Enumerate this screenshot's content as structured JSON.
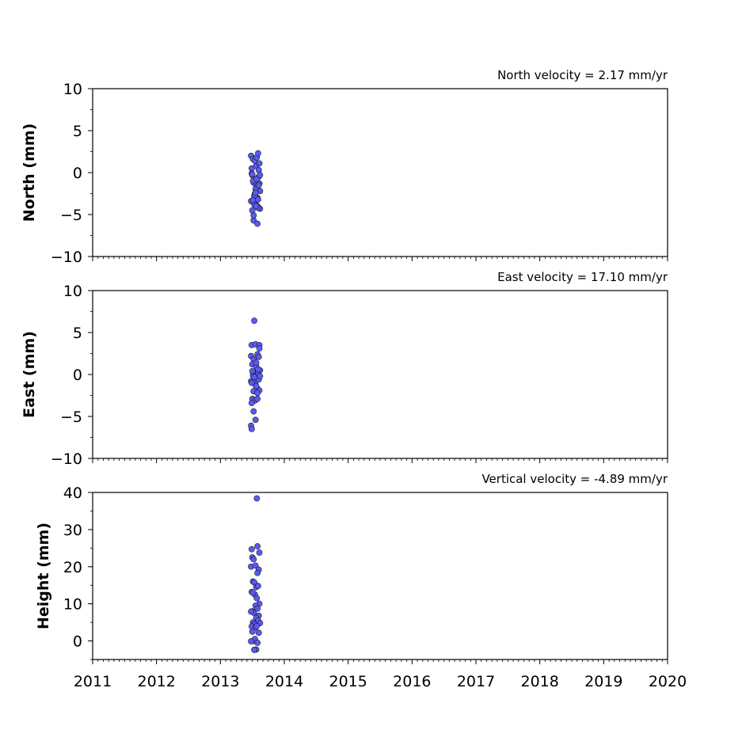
{
  "chart_data": [
    {
      "type": "scatter",
      "title": "North velocity = 2.17 mm/yr",
      "xlabel": "",
      "ylabel": "North (mm)",
      "xlim": [
        2011,
        2020
      ],
      "ylim": [
        -10,
        10
      ],
      "x_ticks": [
        2011,
        2012,
        2013,
        2014,
        2015,
        2016,
        2017,
        2018,
        2019,
        2020
      ],
      "y_ticks": [
        -10,
        -5,
        0,
        5,
        10
      ],
      "tick_labels_x": [],
      "tick_labels_y": [
        "−10",
        "−5",
        "0",
        "5",
        "10"
      ],
      "marker_color": "#5a5af5",
      "edge_color": "#1a1a1a",
      "grid": false,
      "series": [
        {
          "x": [
            2013.48,
            2013.49,
            2013.5,
            2013.51,
            2013.52,
            2013.53,
            2013.54,
            2013.55,
            2013.56,
            2013.57,
            2013.58,
            2013.59,
            2013.6,
            2013.61,
            2013.62,
            2013.48,
            2013.5,
            2013.52,
            2013.54,
            2013.56,
            2013.58,
            2013.6,
            2013.62,
            2013.49,
            2013.51,
            2013.53,
            2013.55,
            2013.57,
            2013.59,
            2013.61,
            2013.5,
            2013.52,
            2013.54,
            2013.56,
            2013.58,
            2013.6,
            2013.62,
            2013.51,
            2013.55,
            2013.59
          ],
          "y": [
            2.0,
            0.5,
            -0.3,
            1.6,
            -1.2,
            -2.8,
            1.4,
            -3.5,
            0.8,
            1.8,
            -4.0,
            2.3,
            -0.5,
            1.1,
            -4.3,
            -3.4,
            -4.5,
            -5.7,
            -2.5,
            -1.8,
            -3.0,
            0.3,
            -2.2,
            -0.1,
            -1.0,
            -3.8,
            -2.0,
            -0.8,
            -4.2,
            -1.3,
            -0.2,
            -5.1,
            -2.7,
            -4.0,
            -6.1,
            -1.5,
            -0.3,
            -3.3,
            -2.4,
            -3.2
          ]
        }
      ]
    },
    {
      "type": "scatter",
      "title": "East velocity = 17.10 mm/yr",
      "xlabel": "",
      "ylabel": "East (mm)",
      "xlim": [
        2011,
        2020
      ],
      "ylim": [
        -10,
        10
      ],
      "x_ticks": [
        2011,
        2012,
        2013,
        2014,
        2015,
        2016,
        2017,
        2018,
        2019,
        2020
      ],
      "y_ticks": [
        -10,
        -5,
        0,
        5,
        10
      ],
      "tick_labels_x": [],
      "tick_labels_y": [
        "−10",
        "−5",
        "0",
        "5",
        "10"
      ],
      "marker_color": "#5a5af5",
      "edge_color": "#1a1a1a",
      "grid": false,
      "series": [
        {
          "x": [
            2013.53,
            2013.49,
            2013.55,
            2013.61,
            2013.48,
            2013.52,
            2013.58,
            2013.6,
            2013.5,
            2013.56,
            2013.62,
            2013.54,
            2013.57,
            2013.51,
            2013.59,
            2013.48,
            2013.53,
            2013.55,
            2013.6,
            2013.49,
            2013.57,
            2013.61,
            2013.52,
            2013.56,
            2013.58,
            2013.5,
            2013.54,
            2013.62,
            2013.51,
            2013.59,
            2013.49,
            2013.52,
            2013.55,
            2013.58,
            2013.61,
            2013.48,
            2013.53,
            2013.5,
            2013.56,
            2013.49
          ],
          "y": [
            6.4,
            3.5,
            3.6,
            3.5,
            2.2,
            1.8,
            2.4,
            2.1,
            1.2,
            1.0,
            0.5,
            0.3,
            0.0,
            0.2,
            -0.4,
            -0.8,
            -0.5,
            -1.2,
            -0.6,
            -1.0,
            -1.6,
            -1.9,
            -2.0,
            -1.4,
            -2.2,
            -2.9,
            -3.1,
            -0.2,
            -0.1,
            0.6,
            -3.4,
            -4.4,
            -5.4,
            -2.9,
            3.1,
            -6.1,
            -0.3,
            0.4,
            1.4,
            -6.5
          ]
        }
      ]
    },
    {
      "type": "scatter",
      "title": "Vertical velocity = -4.89 mm/yr",
      "xlabel": "",
      "ylabel": "Height (mm)",
      "xlim": [
        2011,
        2020
      ],
      "ylim": [
        -5,
        40
      ],
      "x_ticks": [
        2011,
        2012,
        2013,
        2014,
        2015,
        2016,
        2017,
        2018,
        2019,
        2020
      ],
      "y_ticks": [
        0,
        10,
        20,
        30,
        40
      ],
      "tick_labels_x": [
        "2011",
        "2012",
        "2013",
        "2014",
        "2015",
        "2016",
        "2017",
        "2018",
        "2019",
        "2020"
      ],
      "tick_labels_y": [
        "0",
        "10",
        "20",
        "30",
        "40"
      ],
      "marker_color": "#5a5af5",
      "edge_color": "#1a1a1a",
      "grid": false,
      "series": [
        {
          "x": [
            2013.57,
            2013.49,
            2013.58,
            2013.61,
            2013.5,
            2013.52,
            2013.48,
            2013.55,
            2013.6,
            2013.58,
            2013.51,
            2013.53,
            2013.56,
            2013.59,
            2013.49,
            2013.54,
            2013.57,
            2013.61,
            2013.5,
            2013.55,
            2013.58,
            2013.52,
            2013.6,
            2013.48,
            2013.56,
            2013.59,
            2013.51,
            2013.53,
            2013.62,
            2013.49,
            2013.55,
            2013.57,
            2013.5,
            2013.6,
            2013.52,
            2013.54,
            2013.58,
            2013.48,
            2013.56,
            2013.53,
            2013.51
          ],
          "y": [
            38.4,
            24.7,
            25.5,
            23.8,
            22.5,
            22.0,
            20.0,
            20.3,
            19.2,
            18.3,
            16.0,
            15.8,
            14.5,
            14.8,
            13.2,
            12.5,
            11.5,
            10.0,
            8.0,
            9.5,
            8.7,
            7.6,
            6.8,
            7.9,
            6.2,
            5.5,
            5.0,
            4.5,
            4.8,
            3.9,
            3.6,
            4.0,
            2.5,
            2.2,
            0.0,
            0.5,
            -0.5,
            -0.1,
            -2.3,
            -2.4,
            13.0
          ]
        }
      ]
    }
  ]
}
